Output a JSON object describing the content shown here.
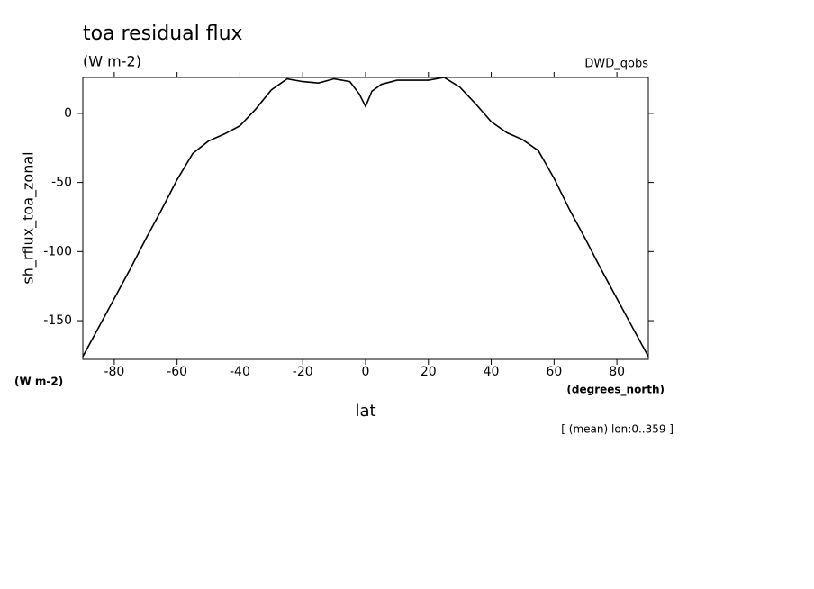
{
  "chart_data": {
    "type": "line",
    "title": "toa residual flux",
    "subtitle": "(W m-2)",
    "dataset": "DWD_qobs",
    "ylabel": "sh_rflux_toa_zonal",
    "yunits": "(W m-2)",
    "xlabel": "lat",
    "xunits": "(degrees_north)",
    "note": "[ (mean) lon:0..359 ]",
    "x": [
      -90,
      -85,
      -80,
      -75,
      -70,
      -65,
      -60,
      -55,
      -50,
      -45,
      -40,
      -35,
      -30,
      -25,
      -20,
      -15,
      -10,
      -5,
      -2,
      0,
      2,
      5,
      10,
      15,
      20,
      25,
      30,
      35,
      40,
      45,
      50,
      55,
      60,
      65,
      70,
      75,
      80,
      85,
      90
    ],
    "series": [
      {
        "name": "sh_rflux_toa_zonal",
        "color": "#000000",
        "values": [
          -176,
          -155,
          -134,
          -113,
          -91,
          -70,
          -48,
          -29,
          -20,
          -15,
          -9,
          3,
          17,
          25,
          23,
          22,
          25,
          23,
          14,
          5,
          16,
          21,
          24,
          24,
          24,
          26,
          19,
          7,
          -6,
          -14,
          -19,
          -27,
          -47,
          -70,
          -91,
          -113,
          -134,
          -155,
          -176
        ]
      }
    ],
    "xlim": [
      -90,
      90
    ],
    "ylim": [
      -178,
      26
    ],
    "xticks": [
      -80,
      -60,
      -40,
      -20,
      0,
      20,
      40,
      60,
      80
    ],
    "yticks": [
      -150,
      -100,
      -50,
      0
    ]
  }
}
